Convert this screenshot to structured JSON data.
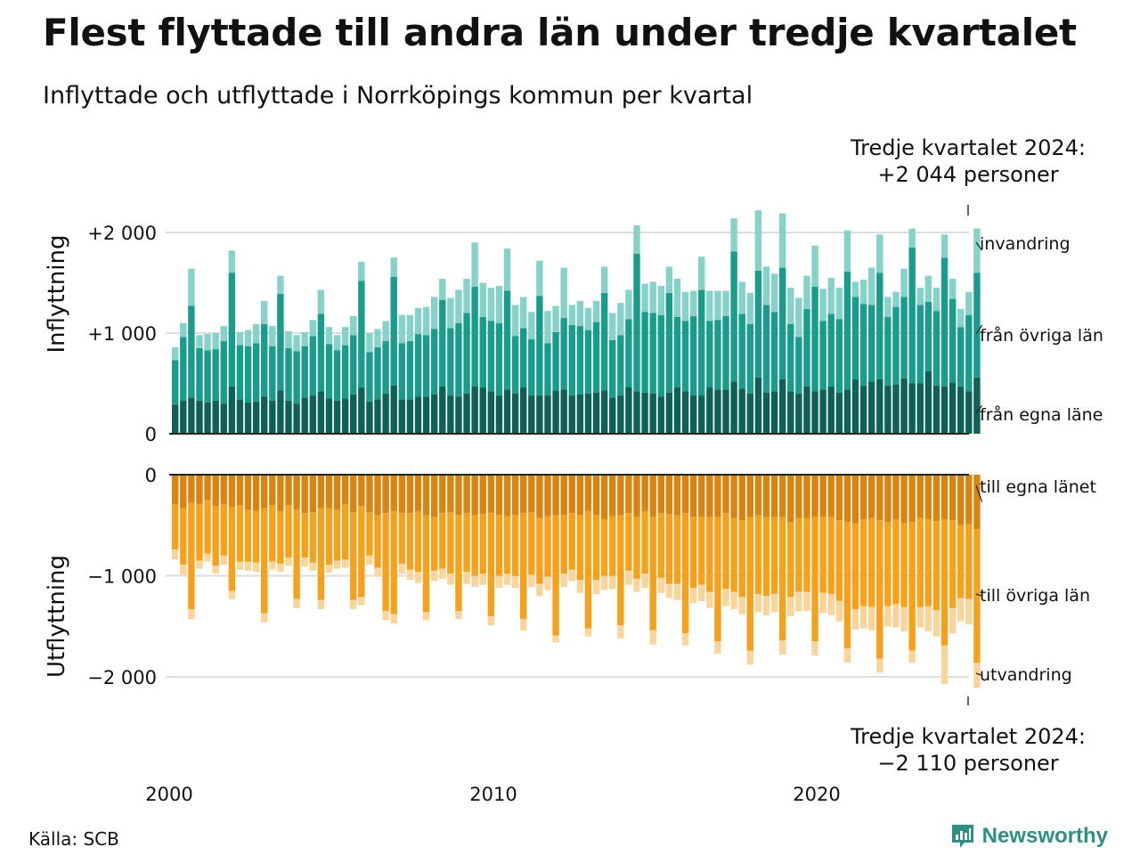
{
  "title": "Flest flyttade till andra län under tredje kvartalet",
  "subtitle": "Inflyttade och utflyttade i Norrköpings kommun per kvartal",
  "source": "Källa: SCB",
  "brand": "Newsworthy",
  "colors": {
    "in_egna": "#0f6157",
    "in_ovriga": "#1a9c8c",
    "in_invandring": "#86d1c8",
    "out_egna": "#d98311",
    "out_ovriga": "#f5a11c",
    "out_utvandring": "#fad49a",
    "grid": "#dddddd",
    "axis": "#222222",
    "brand": "#2e8f82"
  },
  "chart_data": [
    {
      "type": "bar",
      "stacked": true,
      "panel": "Inflyttning",
      "ylabel": "Inflyttning",
      "ylim": [
        0,
        2300
      ],
      "yticks": [
        0,
        1000,
        2000
      ],
      "ytick_labels": [
        "0",
        "+1 000",
        "+2 000"
      ],
      "x_start": "2000 Q1",
      "x_end": "2024 Q3",
      "x_ticks": [
        "2000",
        "2010",
        "2020"
      ],
      "annotation": {
        "line1": "Tredje kvartalet 2024:",
        "line2": "+2 044 personer"
      },
      "series": [
        {
          "name": "från egna länet",
          "label": "från egna läne",
          "values": [
            290,
            330,
            360,
            330,
            310,
            330,
            300,
            470,
            340,
            310,
            320,
            370,
            330,
            430,
            330,
            300,
            360,
            380,
            420,
            350,
            330,
            350,
            390,
            460,
            320,
            340,
            400,
            480,
            340,
            340,
            370,
            370,
            390,
            470,
            380,
            370,
            400,
            470,
            460,
            420,
            380,
            440,
            400,
            460,
            380,
            380,
            380,
            430,
            440,
            380,
            390,
            400,
            410,
            430,
            360,
            380,
            460,
            420,
            410,
            400,
            370,
            410,
            460,
            420,
            380,
            380,
            460,
            440,
            440,
            520,
            450,
            400,
            560,
            410,
            420,
            540,
            420,
            400,
            470,
            420,
            440,
            470,
            410,
            440,
            540,
            480,
            520,
            540,
            480,
            490,
            550,
            500,
            500,
            620,
            480,
            470,
            510,
            470,
            420,
            560
          ]
        },
        {
          "name": "från övriga län",
          "values": [
            440,
            630,
            910,
            520,
            520,
            510,
            620,
            1130,
            540,
            560,
            580,
            720,
            540,
            960,
            520,
            520,
            510,
            590,
            770,
            540,
            500,
            530,
            590,
            1060,
            490,
            520,
            520,
            1080,
            560,
            580,
            620,
            610,
            650,
            860,
            670,
            730,
            800,
            990,
            700,
            700,
            720,
            980,
            570,
            590,
            560,
            990,
            520,
            580,
            710,
            700,
            680,
            630,
            700,
            970,
            570,
            600,
            680,
            1370,
            800,
            800,
            810,
            990,
            700,
            700,
            790,
            1050,
            660,
            690,
            730,
            1290,
            740,
            690,
            1060,
            870,
            790,
            1110,
            670,
            560,
            770,
            1040,
            680,
            720,
            730,
            1170,
            820,
            810,
            760,
            1060,
            680,
            770,
            810,
            1350,
            780,
            690,
            740,
            1280,
            830,
            590,
            760,
            1040
          ]
        },
        {
          "name": "invandring",
          "values": [
            130,
            140,
            370,
            130,
            160,
            160,
            150,
            220,
            130,
            160,
            190,
            230,
            200,
            180,
            170,
            160,
            140,
            160,
            240,
            170,
            150,
            180,
            190,
            190,
            190,
            180,
            200,
            190,
            280,
            260,
            260,
            280,
            320,
            210,
            300,
            330,
            340,
            440,
            340,
            330,
            370,
            420,
            310,
            310,
            270,
            350,
            320,
            260,
            500,
            200,
            250,
            220,
            210,
            260,
            270,
            320,
            290,
            280,
            280,
            310,
            290,
            260,
            380,
            290,
            250,
            330,
            300,
            290,
            250,
            330,
            320,
            310,
            600,
            380,
            380,
            540,
            360,
            390,
            330,
            410,
            320,
            360,
            310,
            410,
            150,
            240,
            370,
            380,
            200,
            150,
            280,
            190,
            170,
            260,
            230,
            230,
            200,
            180,
            230,
            440
          ]
        }
      ]
    },
    {
      "type": "bar",
      "stacked": true,
      "panel": "Utflyttning",
      "ylabel": "Utflyttning",
      "ylim": [
        -2250,
        0
      ],
      "yticks": [
        0,
        -1000,
        -2000
      ],
      "ytick_labels": [
        "0",
        "−1 000",
        "−2 000"
      ],
      "x_start": "2000 Q1",
      "x_end": "2024 Q3",
      "x_ticks": [
        "2000",
        "2010",
        "2020"
      ],
      "annotation": {
        "line1": "Tredje kvartalet 2024:",
        "line2": "−2 110 personer"
      },
      "series": [
        {
          "name": "till egna länet",
          "values": [
            -290,
            -330,
            -280,
            -290,
            -250,
            -310,
            -290,
            -320,
            -300,
            -350,
            -360,
            -330,
            -300,
            -360,
            -300,
            -350,
            -380,
            -370,
            -330,
            -330,
            -350,
            -290,
            -370,
            -310,
            -370,
            -400,
            -380,
            -360,
            -380,
            -380,
            -360,
            -400,
            -420,
            -380,
            -370,
            -400,
            -380,
            -400,
            -390,
            -380,
            -400,
            -410,
            -400,
            -380,
            -370,
            -430,
            -410,
            -400,
            -400,
            -380,
            -400,
            -360,
            -400,
            -440,
            -410,
            -400,
            -380,
            -420,
            -360,
            -420,
            -380,
            -390,
            -400,
            -380,
            -420,
            -420,
            -420,
            -420,
            -380,
            -430,
            -450,
            -420,
            -400,
            -420,
            -420,
            -420,
            -470,
            -430,
            -430,
            -420,
            -420,
            -420,
            -450,
            -470,
            -480,
            -440,
            -430,
            -450,
            -470,
            -440,
            -480,
            -470,
            -430,
            -440,
            -460,
            -440,
            -450,
            -500,
            -490,
            -540
          ]
        },
        {
          "name": "till övriga län",
          "values": [
            -450,
            -560,
            -1050,
            -560,
            -530,
            -590,
            -510,
            -830,
            -560,
            -510,
            -510,
            -1040,
            -560,
            -520,
            -520,
            -880,
            -440,
            -500,
            -910,
            -560,
            -500,
            -550,
            -870,
            -900,
            -430,
            -520,
            -970,
            -1020,
            -500,
            -560,
            -600,
            -960,
            -530,
            -550,
            -610,
            -950,
            -580,
            -600,
            -590,
            -1020,
            -600,
            -570,
            -600,
            -1050,
            -620,
            -650,
            -600,
            -1190,
            -580,
            -560,
            -640,
            -1160,
            -640,
            -560,
            -590,
            -1090,
            -570,
            -610,
            -620,
            -1120,
            -640,
            -690,
            -680,
            -1190,
            -700,
            -670,
            -740,
            -1230,
            -750,
            -730,
            -760,
            -1320,
            -780,
            -780,
            -760,
            -1220,
            -740,
            -730,
            -730,
            -1230,
            -750,
            -760,
            -800,
            -1250,
            -850,
            -860,
            -880,
            -1370,
            -830,
            -840,
            -830,
            -1270,
            -880,
            -860,
            -880,
            -1250,
            -870,
            -720,
            -740,
            -1320
          ]
        },
        {
          "name": "utvandring",
          "values": [
            -100,
            -100,
            -100,
            -80,
            -80,
            -80,
            -90,
            -80,
            -80,
            -90,
            -90,
            -90,
            -80,
            -80,
            -80,
            -90,
            -90,
            -80,
            -90,
            -80,
            -80,
            -80,
            -90,
            -80,
            -90,
            -90,
            -90,
            -90,
            -100,
            -100,
            -110,
            -80,
            -100,
            -100,
            -110,
            -80,
            -120,
            -110,
            -110,
            -90,
            -120,
            -110,
            -120,
            -110,
            -120,
            -120,
            -130,
            -70,
            -130,
            -110,
            -130,
            -80,
            -140,
            -140,
            -130,
            -130,
            -140,
            -130,
            -140,
            -140,
            -150,
            -140,
            -160,
            -120,
            -150,
            -160,
            -160,
            -120,
            -170,
            -170,
            -170,
            -140,
            -180,
            -190,
            -180,
            -140,
            -190,
            -190,
            -190,
            -140,
            -200,
            -210,
            -200,
            -140,
            -200,
            -220,
            -230,
            -140,
            -200,
            -230,
            -240,
            -120,
            -200,
            -250,
            -260,
            -380,
            -250,
            -230,
            -250,
            -250
          ]
        }
      ]
    }
  ]
}
